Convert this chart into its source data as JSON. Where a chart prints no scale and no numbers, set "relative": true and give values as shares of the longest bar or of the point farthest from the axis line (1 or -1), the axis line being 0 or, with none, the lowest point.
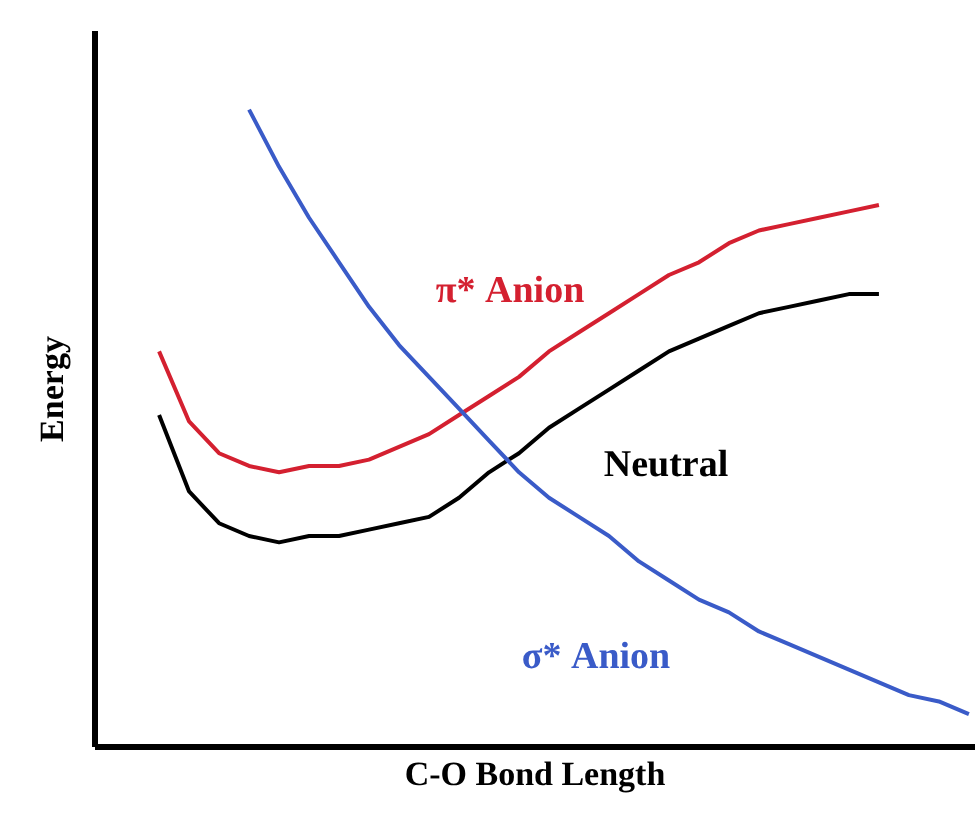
{
  "chart_data": {
    "type": "line",
    "relative": true,
    "xlabel": "C-O Bond Length",
    "ylabel": "Energy",
    "tick_labels": false,
    "line_style": "solid",
    "categories": [
      null,
      null,
      null,
      null,
      null,
      null,
      null,
      null,
      null,
      null,
      null,
      null,
      null,
      null,
      null,
      null,
      null,
      null,
      null,
      null,
      null,
      null,
      null,
      null,
      null,
      null,
      null,
      null,
      null,
      null
    ],
    "series": [
      {
        "name": "π* Anion",
        "color": "#d42030",
        "values": [
          null,
          null,
          0.62,
          0.51,
          0.46,
          0.44,
          0.43,
          0.44,
          0.44,
          0.45,
          0.47,
          0.49,
          0.52,
          0.55,
          0.58,
          0.62,
          0.65,
          0.68,
          0.71,
          0.74,
          0.76,
          0.79,
          0.81,
          0.82,
          0.83,
          0.84,
          0.85,
          null,
          null,
          null
        ]
      },
      {
        "name": "Neutral",
        "color": "#000000",
        "values": [
          null,
          null,
          0.52,
          0.4,
          0.35,
          0.33,
          0.32,
          0.33,
          0.33,
          0.34,
          0.35,
          0.36,
          0.39,
          0.43,
          0.46,
          0.5,
          0.53,
          0.56,
          0.59,
          0.62,
          0.64,
          0.66,
          0.68,
          0.69,
          0.7,
          0.71,
          0.71,
          null,
          null,
          null
        ]
      },
      {
        "name": "σ* Anion",
        "color": "#3a5bc8",
        "values": [
          null,
          null,
          null,
          null,
          null,
          1.0,
          0.91,
          0.83,
          0.76,
          0.69,
          0.63,
          0.58,
          0.53,
          0.48,
          0.43,
          0.39,
          0.36,
          0.33,
          0.29,
          0.26,
          0.23,
          0.21,
          0.18,
          0.16,
          0.14,
          0.12,
          0.1,
          0.08,
          0.07,
          0.05
        ]
      }
    ]
  }
}
